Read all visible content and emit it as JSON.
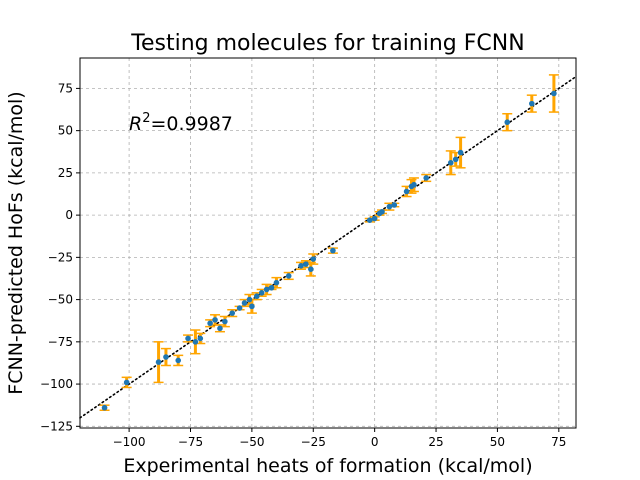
{
  "chart_data": {
    "type": "scatter",
    "title": "Testing molecules for training FCNN",
    "xlabel": "Experimental heats of formation (kcal/mol)",
    "ylabel": "FCNN-predicted HoFs (kcal/mol)",
    "annotation": {
      "r2_label": "R",
      "r2_sup": "2",
      "r2_value": "=0.9987"
    },
    "xlim": [
      -120,
      82
    ],
    "ylim": [
      -126,
      93
    ],
    "xticks": [
      -100,
      -75,
      -50,
      -25,
      0,
      25,
      50,
      75
    ],
    "yticks": [
      -125,
      -100,
      -75,
      -50,
      -25,
      0,
      25,
      50,
      75
    ],
    "grid": true,
    "colors": {
      "point": "#1f77b4",
      "errorbar": "#ffa500",
      "reference_line": "#000000",
      "grid": "#b0b0b0"
    },
    "reference_line": {
      "style": "dotted",
      "slope": 1,
      "intercept": 0
    },
    "points": [
      {
        "x": -110,
        "y": -114,
        "err": 1.5
      },
      {
        "x": -101,
        "y": -99,
        "err": 3
      },
      {
        "x": -88,
        "y": -87,
        "err": 12
      },
      {
        "x": -85,
        "y": -84,
        "err": 5
      },
      {
        "x": -80,
        "y": -86,
        "err": 3
      },
      {
        "x": -76,
        "y": -73,
        "err": 2
      },
      {
        "x": -73,
        "y": -75,
        "err": 7
      },
      {
        "x": -71,
        "y": -73,
        "err": 3
      },
      {
        "x": -67,
        "y": -64,
        "err": 2
      },
      {
        "x": -65,
        "y": -62,
        "err": 3
      },
      {
        "x": -63,
        "y": -67,
        "err": 2
      },
      {
        "x": -61,
        "y": -63,
        "err": 3
      },
      {
        "x": -58,
        "y": -58,
        "err": 2
      },
      {
        "x": -55,
        "y": -55,
        "err": 1
      },
      {
        "x": -53,
        "y": -52,
        "err": 2
      },
      {
        "x": -51,
        "y": -50,
        "err": 3
      },
      {
        "x": -50,
        "y": -54,
        "err": 4
      },
      {
        "x": -48,
        "y": -48,
        "err": 2
      },
      {
        "x": -46,
        "y": -46,
        "err": 2
      },
      {
        "x": -44,
        "y": -44,
        "err": 3
      },
      {
        "x": -42,
        "y": -43,
        "err": 1
      },
      {
        "x": -40,
        "y": -40,
        "err": 3
      },
      {
        "x": -35,
        "y": -36,
        "err": 2
      },
      {
        "x": -30,
        "y": -30,
        "err": 2
      },
      {
        "x": -28,
        "y": -29,
        "err": 2
      },
      {
        "x": -26,
        "y": -32,
        "err": 4
      },
      {
        "x": -25,
        "y": -26,
        "err": 3
      },
      {
        "x": -17,
        "y": -21,
        "err": 1.5
      },
      {
        "x": -2,
        "y": -3,
        "err": 1
      },
      {
        "x": 0,
        "y": -2,
        "err": 1
      },
      {
        "x": 2,
        "y": 1,
        "err": 1
      },
      {
        "x": 3,
        "y": 2,
        "err": 1
      },
      {
        "x": 6,
        "y": 5,
        "err": 2
      },
      {
        "x": 8,
        "y": 6,
        "err": 1
      },
      {
        "x": 13,
        "y": 14,
        "err": 3
      },
      {
        "x": 15,
        "y": 17,
        "err": 4
      },
      {
        "x": 16,
        "y": 18,
        "err": 4
      },
      {
        "x": 21,
        "y": 22,
        "err": 2
      },
      {
        "x": 31,
        "y": 31,
        "err": 7
      },
      {
        "x": 33,
        "y": 33,
        "err": 4
      },
      {
        "x": 35,
        "y": 37,
        "err": 9
      },
      {
        "x": 54,
        "y": 55,
        "err": 5
      },
      {
        "x": 64,
        "y": 66,
        "err": 5
      },
      {
        "x": 73,
        "y": 72,
        "err": 11
      }
    ]
  }
}
